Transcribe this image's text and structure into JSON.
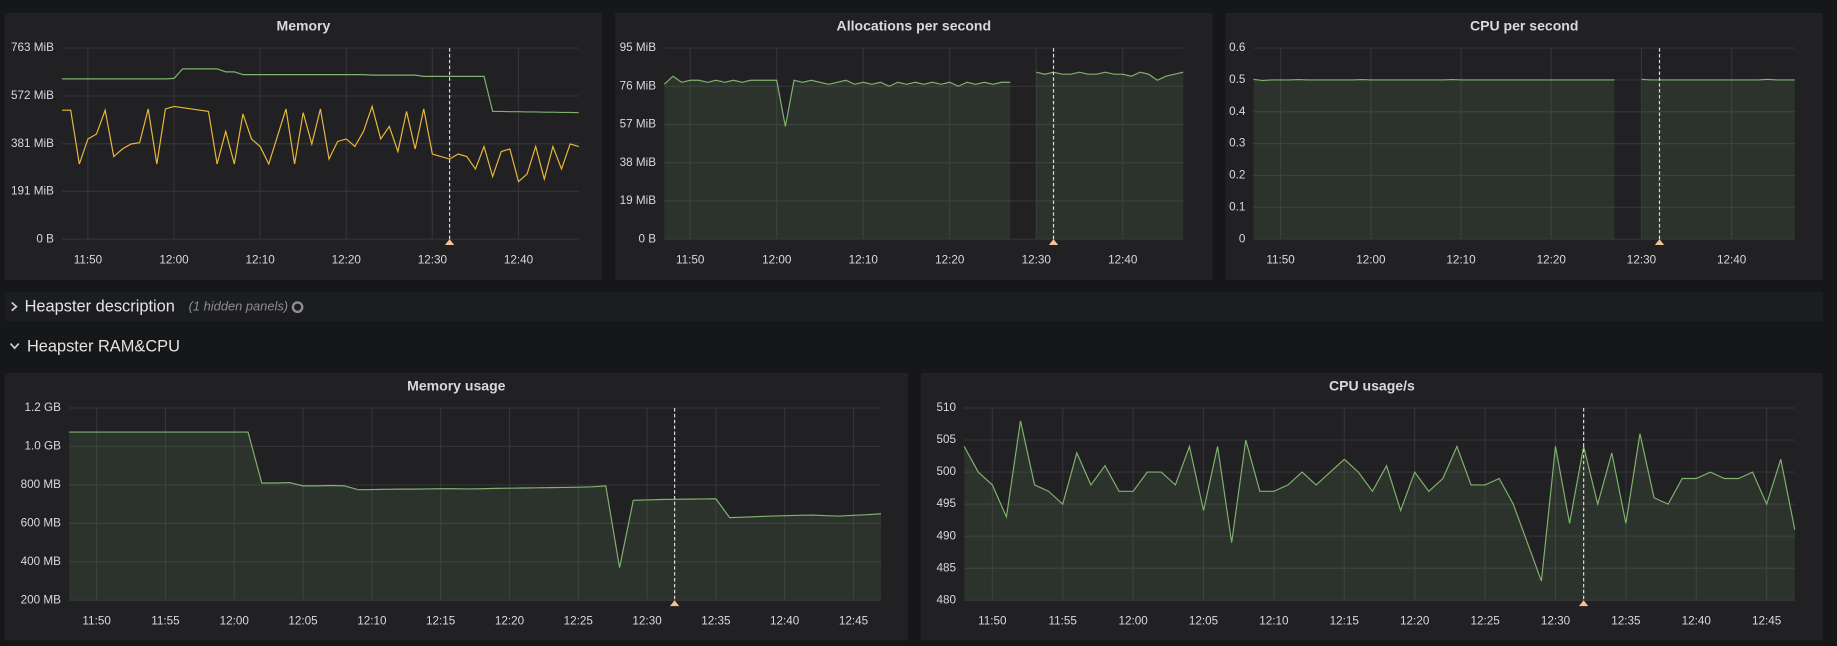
{
  "rows": [
    {
      "title": "Heapster description",
      "note": "(1 hidden panels)"
    },
    {
      "title": "Heapster RAM&CPU"
    }
  ],
  "chart_data": [
    {
      "type": "line",
      "title": "Memory",
      "fill": false,
      "grid": true,
      "x": [
        "11:47",
        "11:48",
        "11:49",
        "11:50",
        "11:51",
        "11:52",
        "11:53",
        "11:54",
        "11:55",
        "11:56",
        "11:57",
        "11:58",
        "11:59",
        "12:00",
        "12:01",
        "12:02",
        "12:03",
        "12:04",
        "12:05",
        "12:06",
        "12:07",
        "12:08",
        "12:09",
        "12:10",
        "12:11",
        "12:12",
        "12:13",
        "12:14",
        "12:15",
        "12:16",
        "12:17",
        "12:18",
        "12:19",
        "12:20",
        "12:21",
        "12:22",
        "12:23",
        "12:24",
        "12:25",
        "12:26",
        "12:27",
        "12:28",
        "12:29",
        "12:30",
        "12:31",
        "12:32",
        "12:33",
        "12:34",
        "12:35",
        "12:36",
        "12:37",
        "12:38",
        "12:39",
        "12:40",
        "12:41",
        "12:42",
        "12:43",
        "12:44",
        "12:45",
        "12:46",
        "12:47"
      ],
      "series": [
        {
          "color": "#7eb26d",
          "values": [
            640,
            640,
            640,
            640,
            640,
            640,
            640,
            640,
            640,
            640,
            640,
            640,
            640,
            642,
            680,
            680,
            680,
            680,
            680,
            668,
            668,
            657,
            657,
            657,
            657,
            657,
            657,
            657,
            657,
            657,
            657,
            657,
            657,
            657,
            657,
            657,
            655,
            655,
            655,
            655,
            655,
            655,
            650,
            650,
            650,
            650,
            650,
            650,
            650,
            650,
            510,
            510,
            509,
            509,
            508,
            508,
            507,
            507,
            506,
            506,
            505
          ]
        },
        {
          "color": "#eab839",
          "values": [
            515,
            515,
            300,
            400,
            420,
            515,
            330,
            360,
            380,
            385,
            520,
            300,
            520,
            530,
            525,
            520,
            515,
            510,
            300,
            430,
            300,
            500,
            400,
            370,
            300,
            410,
            520,
            300,
            505,
            380,
            520,
            320,
            390,
            400,
            370,
            430,
            530,
            400,
            450,
            350,
            510,
            360,
            520,
            340,
            330,
            320,
            340,
            330,
            280,
            370,
            250,
            350,
            360,
            230,
            260,
            370,
            240,
            370,
            280,
            380,
            370
          ]
        }
      ],
      "xlim": [
        "11:47",
        "12:47"
      ],
      "xticks": [
        "11:50",
        "12:00",
        "12:10",
        "12:20",
        "12:30",
        "12:40"
      ],
      "ylim": [
        0,
        763
      ],
      "yticks": [
        {
          "value": 0,
          "label": "0 B"
        },
        {
          "value": 191,
          "label": "191 MiB"
        },
        {
          "value": 381,
          "label": "381 MiB"
        },
        {
          "value": 572,
          "label": "572 MiB"
        },
        {
          "value": 763,
          "label": "763 MiB"
        }
      ],
      "annotations": [
        "12:32"
      ]
    },
    {
      "type": "line",
      "title": "Allocations per second",
      "fill": true,
      "grid": true,
      "x": [
        "11:47",
        "11:48",
        "11:49",
        "11:50",
        "11:51",
        "11:52",
        "11:53",
        "11:54",
        "11:55",
        "11:56",
        "11:57",
        "11:58",
        "11:59",
        "12:00",
        "12:01",
        "12:02",
        "12:03",
        "12:04",
        "12:05",
        "12:06",
        "12:07",
        "12:08",
        "12:09",
        "12:10",
        "12:11",
        "12:12",
        "12:13",
        "12:14",
        "12:15",
        "12:16",
        "12:17",
        "12:18",
        "12:19",
        "12:20",
        "12:21",
        "12:22",
        "12:23",
        "12:24",
        "12:25",
        "12:26",
        "12:27",
        "12:28",
        "12:29",
        "12:30",
        "12:31",
        "12:32",
        "12:33",
        "12:34",
        "12:35",
        "12:36",
        "12:37",
        "12:38",
        "12:39",
        "12:40",
        "12:41",
        "12:42",
        "12:43",
        "12:44",
        "12:45",
        "12:46",
        "12:47"
      ],
      "series": [
        {
          "color": "#7eb26d",
          "values": [
            77,
            81,
            78,
            79,
            79,
            78,
            79,
            78,
            79,
            78,
            79,
            79,
            79,
            79,
            56,
            79,
            78,
            79,
            78,
            77,
            78,
            79,
            77,
            78,
            77,
            78,
            76,
            78,
            77,
            78,
            77,
            78,
            77,
            78,
            76,
            78,
            77,
            78,
            77,
            78,
            78,
            null,
            null,
            83,
            82,
            83,
            82,
            82,
            83,
            82,
            82,
            83,
            82,
            82,
            81,
            83,
            82,
            79,
            81,
            82,
            83
          ]
        }
      ],
      "xlim": [
        "11:47",
        "12:47"
      ],
      "xticks": [
        "11:50",
        "12:00",
        "12:10",
        "12:20",
        "12:30",
        "12:40"
      ],
      "ylim": [
        0,
        95
      ],
      "yticks": [
        {
          "value": 0,
          "label": "0 B"
        },
        {
          "value": 19,
          "label": "19 MiB"
        },
        {
          "value": 38,
          "label": "38 MiB"
        },
        {
          "value": 57,
          "label": "57 MiB"
        },
        {
          "value": 76,
          "label": "76 MiB"
        },
        {
          "value": 95,
          "label": "95 MiB"
        }
      ],
      "annotations": [
        "12:32"
      ]
    },
    {
      "type": "line",
      "title": "CPU per second",
      "fill": true,
      "grid": true,
      "x": [
        "11:47",
        "11:48",
        "11:49",
        "11:50",
        "11:51",
        "11:52",
        "11:53",
        "11:54",
        "11:55",
        "11:56",
        "11:57",
        "11:58",
        "11:59",
        "12:00",
        "12:01",
        "12:02",
        "12:03",
        "12:04",
        "12:05",
        "12:06",
        "12:07",
        "12:08",
        "12:09",
        "12:10",
        "12:11",
        "12:12",
        "12:13",
        "12:14",
        "12:15",
        "12:16",
        "12:17",
        "12:18",
        "12:19",
        "12:20",
        "12:21",
        "12:22",
        "12:23",
        "12:24",
        "12:25",
        "12:26",
        "12:27",
        "12:28",
        "12:29",
        "12:30",
        "12:31",
        "12:32",
        "12:33",
        "12:34",
        "12:35",
        "12:36",
        "12:37",
        "12:38",
        "12:39",
        "12:40",
        "12:41",
        "12:42",
        "12:43",
        "12:44",
        "12:45",
        "12:46",
        "12:47"
      ],
      "series": [
        {
          "color": "#7eb26d",
          "values": [
            0.502,
            0.498,
            0.5,
            0.5,
            0.5,
            0.501,
            0.5,
            0.5,
            0.5,
            0.5,
            0.5,
            0.5,
            0.501,
            0.5,
            0.5,
            0.5,
            0.5,
            0.5,
            0.5,
            0.5,
            0.5,
            0.5,
            0.501,
            0.5,
            0.5,
            0.5,
            0.5,
            0.5,
            0.5,
            0.5,
            0.5,
            0.5,
            0.5,
            0.5,
            0.5,
            0.5,
            0.5,
            0.5,
            0.5,
            0.5,
            0.5,
            null,
            null,
            0.502,
            0.5,
            0.5,
            0.5,
            0.5,
            0.5,
            0.5,
            0.5,
            0.5,
            0.5,
            0.5,
            0.5,
            0.5,
            0.5,
            0.502,
            0.5,
            0.5,
            0.5
          ]
        }
      ],
      "xlim": [
        "11:47",
        "12:47"
      ],
      "xticks": [
        "11:50",
        "12:00",
        "12:10",
        "12:20",
        "12:30",
        "12:40"
      ],
      "ylim": [
        0,
        0.6
      ],
      "yticks": [
        0,
        0.1,
        0.2,
        0.3,
        0.4,
        0.5,
        0.6
      ],
      "annotations": [
        "12:32"
      ]
    },
    {
      "type": "line",
      "title": "Memory usage",
      "fill": true,
      "grid": true,
      "x": [
        "11:48",
        "11:49",
        "11:50",
        "11:51",
        "11:52",
        "11:53",
        "11:54",
        "11:55",
        "11:56",
        "11:57",
        "11:58",
        "11:59",
        "12:00",
        "12:01",
        "12:02",
        "12:03",
        "12:04",
        "12:05",
        "12:06",
        "12:07",
        "12:08",
        "12:09",
        "12:10",
        "12:11",
        "12:12",
        "12:13",
        "12:14",
        "12:15",
        "12:16",
        "12:17",
        "12:18",
        "12:19",
        "12:20",
        "12:21",
        "12:22",
        "12:23",
        "12:24",
        "12:25",
        "12:26",
        "12:27",
        "12:28",
        "12:29",
        "12:30",
        "12:31",
        "12:32",
        "12:33",
        "12:34",
        "12:35",
        "12:36",
        "12:37",
        "12:38",
        "12:39",
        "12:40",
        "12:41",
        "12:42",
        "12:43",
        "12:44",
        "12:45",
        "12:46",
        "12:47"
      ],
      "series": [
        {
          "color": "#7eb26d",
          "values": [
            1075,
            1075,
            1075,
            1075,
            1075,
            1075,
            1075,
            1075,
            1075,
            1075,
            1075,
            1075,
            1075,
            1075,
            810,
            810,
            812,
            795,
            795,
            797,
            795,
            775,
            776,
            777,
            778,
            778,
            779,
            780,
            780,
            779,
            780,
            782,
            783,
            784,
            785,
            786,
            787,
            788,
            790,
            795,
            370,
            720,
            722,
            724,
            725,
            726,
            727,
            728,
            630,
            632,
            635,
            638,
            640,
            642,
            643,
            640,
            638,
            642,
            645,
            650
          ]
        }
      ],
      "xlim": [
        "11:48",
        "12:47"
      ],
      "xticks": [
        "11:50",
        "11:55",
        "12:00",
        "12:05",
        "12:10",
        "12:15",
        "12:20",
        "12:25",
        "12:30",
        "12:35",
        "12:40",
        "12:45"
      ],
      "ylim": [
        200,
        1200
      ],
      "yticks": [
        {
          "value": 200,
          "label": "200 MB"
        },
        {
          "value": 400,
          "label": "400 MB"
        },
        {
          "value": 600,
          "label": "600 MB"
        },
        {
          "value": 800,
          "label": "800 MB"
        },
        {
          "value": 1000,
          "label": "1.0 GB"
        },
        {
          "value": 1200,
          "label": "1.2 GB"
        }
      ],
      "annotations": [
        "12:32"
      ]
    },
    {
      "type": "line",
      "title": "CPU usage/s",
      "fill": true,
      "grid": true,
      "x": [
        "11:48",
        "11:49",
        "11:50",
        "11:51",
        "11:52",
        "11:53",
        "11:54",
        "11:55",
        "11:56",
        "11:57",
        "11:58",
        "11:59",
        "12:00",
        "12:01",
        "12:02",
        "12:03",
        "12:04",
        "12:05",
        "12:06",
        "12:07",
        "12:08",
        "12:09",
        "12:10",
        "12:11",
        "12:12",
        "12:13",
        "12:14",
        "12:15",
        "12:16",
        "12:17",
        "12:18",
        "12:19",
        "12:20",
        "12:21",
        "12:22",
        "12:23",
        "12:24",
        "12:25",
        "12:26",
        "12:27",
        "12:28",
        "12:29",
        "12:30",
        "12:31",
        "12:32",
        "12:33",
        "12:34",
        "12:35",
        "12:36",
        "12:37",
        "12:38",
        "12:39",
        "12:40",
        "12:41",
        "12:42",
        "12:43",
        "12:44",
        "12:45",
        "12:46",
        "12:47"
      ],
      "series": [
        {
          "color": "#7eb26d",
          "values": [
            504,
            500,
            498,
            493,
            508,
            498,
            497,
            495,
            503,
            498,
            501,
            497,
            497,
            500,
            500,
            498,
            504,
            494,
            504,
            489,
            505,
            497,
            497,
            498,
            500,
            498,
            500,
            502,
            500,
            497,
            501,
            494,
            500,
            497,
            499,
            504,
            498,
            498,
            499,
            495,
            489,
            483,
            504,
            492,
            504,
            495,
            503,
            492,
            506,
            496,
            495,
            499,
            499,
            500,
            499,
            499,
            500,
            495,
            502,
            491
          ]
        }
      ],
      "xlim": [
        "11:48",
        "12:47"
      ],
      "xticks": [
        "11:50",
        "11:55",
        "12:00",
        "12:05",
        "12:10",
        "12:15",
        "12:20",
        "12:25",
        "12:30",
        "12:35",
        "12:40",
        "12:45"
      ],
      "ylim": [
        480,
        510
      ],
      "yticks": [
        480,
        485,
        490,
        495,
        500,
        505,
        510
      ],
      "annotations": [
        "12:32"
      ]
    }
  ]
}
